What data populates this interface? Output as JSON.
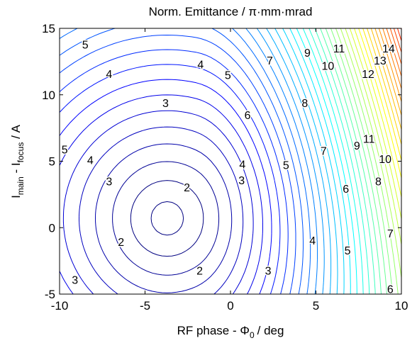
{
  "chart_data": {
    "type": "contour",
    "title": "Norm. Emittance / π·mm·mrad",
    "xlabel": [
      "RF phase - Φ",
      "0",
      "/ deg"
    ],
    "ylabel": [
      "I",
      "main",
      " - I",
      "focus",
      " / A"
    ],
    "xlim": [
      -10,
      10
    ],
    "ylim": [
      -5,
      15
    ],
    "xticks": [
      -10,
      -5,
      0,
      5,
      10
    ],
    "yticks": [
      -5,
      0,
      5,
      10,
      15
    ],
    "contour_labels": [
      {
        "value": 14,
        "x": 9.25,
        "y": 13.4
      },
      {
        "value": 13,
        "x": 8.75,
        "y": 12.5
      },
      {
        "value": 12,
        "x": 8.05,
        "y": 11.5
      },
      {
        "value": 11,
        "x": 6.35,
        "y": 13.4
      },
      {
        "value": 10,
        "x": 5.7,
        "y": 12.1
      },
      {
        "value": 9,
        "x": 4.5,
        "y": 13.1
      },
      {
        "value": 8,
        "x": 4.35,
        "y": 9.3
      },
      {
        "value": 7,
        "x": 2.3,
        "y": 12.5
      },
      {
        "value": 6,
        "x": 1.0,
        "y": 8.4
      },
      {
        "value": 5,
        "x": -0.15,
        "y": 11.4
      },
      {
        "value": 4,
        "x": -1.75,
        "y": 12.2
      },
      {
        "value": 3,
        "x": -3.8,
        "y": 9.3
      },
      {
        "value": 4,
        "x": -7.1,
        "y": 11.5
      },
      {
        "value": 5,
        "x": -8.5,
        "y": 13.7
      },
      {
        "value": 5,
        "x": -9.7,
        "y": 5.8
      },
      {
        "value": 4,
        "x": -8.2,
        "y": 5.0
      },
      {
        "value": 3,
        "x": -7.1,
        "y": 3.4
      },
      {
        "value": 2,
        "x": -2.55,
        "y": 2.95
      },
      {
        "value": 3,
        "x": 0.65,
        "y": 3.5
      },
      {
        "value": 4,
        "x": 0.7,
        "y": 4.7
      },
      {
        "value": 5,
        "x": 3.25,
        "y": 4.65
      },
      {
        "value": 7,
        "x": 5.45,
        "y": 5.7
      },
      {
        "value": 6,
        "x": 6.75,
        "y": 2.85
      },
      {
        "value": 9,
        "x": 7.4,
        "y": 6.1
      },
      {
        "value": 10,
        "x": 9.05,
        "y": 5.1
      },
      {
        "value": 11,
        "x": 8.1,
        "y": 6.6
      },
      {
        "value": 8,
        "x": 8.65,
        "y": 3.4
      },
      {
        "value": 7,
        "x": 9.35,
        "y": -0.5
      },
      {
        "value": 6,
        "x": 9.35,
        "y": -4.7
      },
      {
        "value": 5,
        "x": 6.85,
        "y": -1.8
      },
      {
        "value": 4,
        "x": 4.8,
        "y": -1.05
      },
      {
        "value": 3,
        "x": 2.2,
        "y": -3.3
      },
      {
        "value": 2,
        "x": -1.8,
        "y": -3.3
      },
      {
        "value": 2,
        "x": -6.4,
        "y": -1.15
      },
      {
        "value": 3,
        "x": -9.1,
        "y": -4.0
      }
    ]
  }
}
